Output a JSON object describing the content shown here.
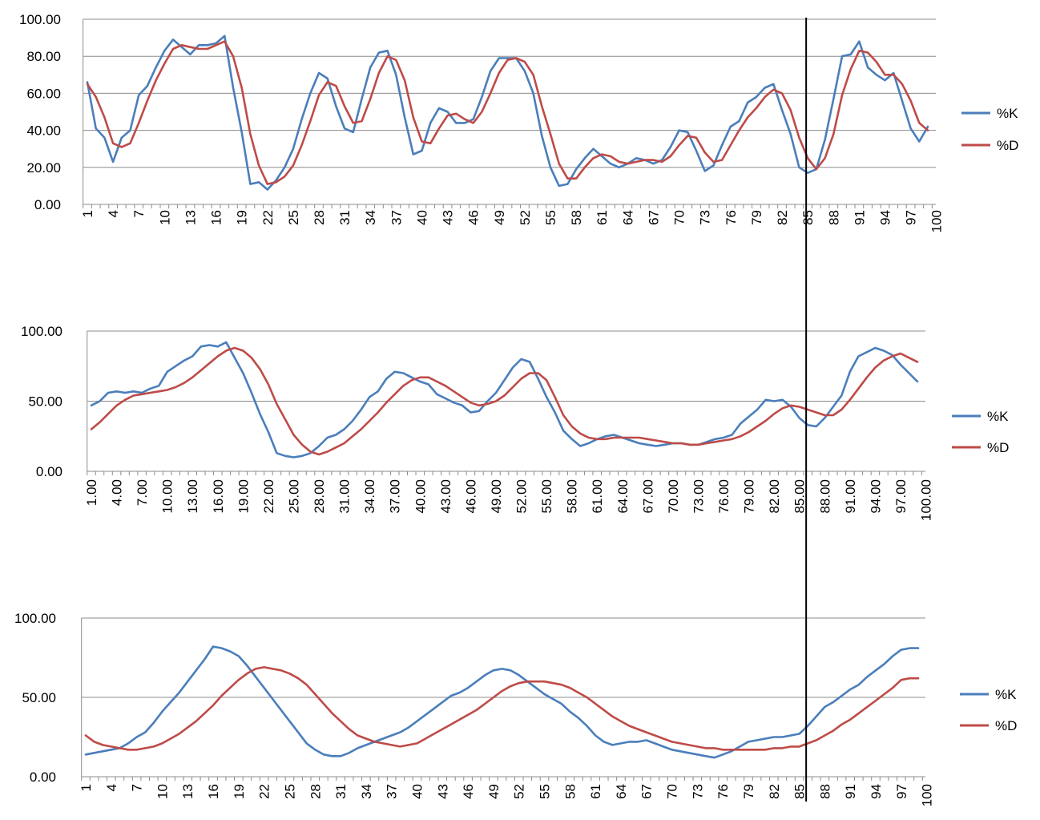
{
  "colors": {
    "k": "#4a7ebb",
    "d": "#be4b48",
    "marker": "#000000"
  },
  "marker_x": 85,
  "chart_data": [
    {
      "type": "line",
      "title": "",
      "x": [
        1,
        2,
        3,
        4,
        5,
        6,
        7,
        8,
        9,
        10,
        11,
        12,
        13,
        14,
        15,
        16,
        17,
        18,
        19,
        20,
        21,
        22,
        23,
        24,
        25,
        26,
        27,
        28,
        29,
        30,
        31,
        32,
        33,
        34,
        35,
        36,
        37,
        38,
        39,
        40,
        41,
        42,
        43,
        44,
        45,
        46,
        47,
        48,
        49,
        50,
        51,
        52,
        53,
        54,
        55,
        56,
        57,
        58,
        59,
        60,
        61,
        62,
        63,
        64,
        65,
        66,
        67,
        68,
        69,
        70,
        71,
        72,
        73,
        74,
        75,
        76,
        77,
        78,
        79,
        80,
        81,
        82,
        83,
        84,
        85,
        86,
        87,
        88,
        89,
        90,
        91,
        92,
        93,
        94,
        95,
        96,
        97,
        98,
        99
      ],
      "tick_labels": [
        "1",
        "4",
        "7",
        "10",
        "13",
        "16",
        "19",
        "22",
        "25",
        "28",
        "31",
        "34",
        "37",
        "40",
        "43",
        "46",
        "49",
        "52",
        "55",
        "58",
        "61",
        "64",
        "67",
        "70",
        "73",
        "76",
        "79",
        "82",
        "85",
        "88",
        "91",
        "94",
        "97",
        "100"
      ],
      "y_tick_labels": [
        "0.00",
        "20.00",
        "40.00",
        "60.00",
        "80.00",
        "100.00"
      ],
      "ylim": [
        0,
        100
      ],
      "series": [
        {
          "name": "%K",
          "values": [
            66,
            41,
            36,
            23,
            36,
            40,
            59,
            64,
            74,
            83,
            89,
            85,
            81,
            86,
            86,
            87,
            91,
            63,
            39,
            11,
            12,
            8,
            13,
            20,
            30,
            46,
            60,
            71,
            68,
            53,
            41,
            39,
            57,
            74,
            82,
            83,
            70,
            47,
            27,
            29,
            44,
            52,
            50,
            44,
            44,
            46,
            58,
            72,
            79,
            79,
            79,
            72,
            60,
            37,
            20,
            10,
            11,
            19,
            25,
            30,
            26,
            22,
            20,
            22,
            25,
            24,
            22,
            24,
            31,
            40,
            39,
            29,
            18,
            21,
            32,
            42,
            45,
            55,
            58,
            63,
            65,
            51,
            38,
            20,
            17,
            19,
            35,
            57,
            80,
            81,
            88,
            74,
            70,
            67,
            71,
            56,
            41,
            34,
            42
          ]
        },
        {
          "name": "%D",
          "values": [
            65,
            58,
            47,
            33,
            31,
            33,
            44,
            56,
            67,
            76,
            84,
            86,
            85,
            84,
            84,
            86,
            88,
            80,
            63,
            38,
            21,
            11,
            12,
            15,
            21,
            32,
            45,
            59,
            66,
            64,
            53,
            44,
            45,
            57,
            71,
            80,
            78,
            67,
            47,
            34,
            33,
            41,
            48,
            49,
            46,
            44,
            50,
            60,
            71,
            78,
            79,
            77,
            70,
            53,
            38,
            22,
            14,
            14,
            20,
            25,
            27,
            26,
            23,
            22,
            23,
            24,
            24,
            23,
            26,
            32,
            37,
            36,
            28,
            23,
            24,
            32,
            40,
            47,
            52,
            58,
            62,
            60,
            51,
            36,
            25,
            19,
            25,
            38,
            59,
            73,
            83,
            82,
            77,
            70,
            70,
            65,
            56,
            44,
            40
          ]
        }
      ]
    },
    {
      "type": "line",
      "title": "",
      "x": [
        1,
        2,
        3,
        4,
        5,
        6,
        7,
        8,
        9,
        10,
        11,
        12,
        13,
        14,
        15,
        16,
        17,
        18,
        19,
        20,
        21,
        22,
        23,
        24,
        25,
        26,
        27,
        28,
        29,
        30,
        31,
        32,
        33,
        34,
        35,
        36,
        37,
        38,
        39,
        40,
        41,
        42,
        43,
        44,
        45,
        46,
        47,
        48,
        49,
        50,
        51,
        52,
        53,
        54,
        55,
        56,
        57,
        58,
        59,
        60,
        61,
        62,
        63,
        64,
        65,
        66,
        67,
        68,
        69,
        70,
        71,
        72,
        73,
        74,
        75,
        76,
        77,
        78,
        79,
        80,
        81,
        82,
        83,
        84,
        85,
        86,
        87,
        88,
        89,
        90,
        91,
        92,
        93,
        94,
        95,
        96,
        97,
        98,
        99
      ],
      "tick_labels": [
        "1.00",
        "4.00",
        "7.00",
        "10.00",
        "13.00",
        "16.00",
        "19.00",
        "22.00",
        "25.00",
        "28.00",
        "31.00",
        "34.00",
        "37.00",
        "40.00",
        "43.00",
        "46.00",
        "49.00",
        "52.00",
        "55.00",
        "58.00",
        "61.00",
        "64.00",
        "67.00",
        "70.00",
        "73.00",
        "76.00",
        "79.00",
        "82.00",
        "85.00",
        "88.00",
        "91.00",
        "94.00",
        "97.00",
        "100.00"
      ],
      "y_tick_labels": [
        "0.00",
        "50.00",
        "100.00"
      ],
      "ylim": [
        0,
        100
      ],
      "series": [
        {
          "name": "%K",
          "values": [
            47,
            50,
            56,
            57,
            56,
            57,
            56,
            59,
            61,
            71,
            75,
            79,
            82,
            89,
            90,
            89,
            92,
            81,
            70,
            56,
            41,
            28,
            13,
            11,
            10,
            11,
            13,
            18,
            24,
            26,
            30,
            36,
            44,
            53,
            57,
            66,
            71,
            70,
            67,
            64,
            62,
            55,
            52,
            49,
            47,
            42,
            43,
            50,
            56,
            65,
            74,
            80,
            78,
            66,
            53,
            42,
            29,
            23,
            18,
            20,
            23,
            25,
            26,
            24,
            22,
            20,
            19,
            18,
            19,
            20,
            20,
            19,
            19,
            21,
            23,
            24,
            26,
            34,
            39,
            44,
            51,
            50,
            51,
            46,
            38,
            33,
            32,
            38,
            46,
            54,
            71,
            82,
            85,
            88,
            86,
            83,
            76,
            70,
            64
          ]
        },
        {
          "name": "%D",
          "values": [
            30,
            35,
            41,
            47,
            51,
            54,
            55,
            56,
            57,
            58,
            60,
            63,
            67,
            72,
            77,
            82,
            86,
            88,
            86,
            81,
            73,
            62,
            48,
            37,
            26,
            19,
            14,
            12,
            14,
            17,
            20,
            25,
            30,
            36,
            42,
            49,
            55,
            61,
            65,
            67,
            67,
            64,
            61,
            57,
            53,
            49,
            47,
            48,
            50,
            54,
            60,
            66,
            70,
            70,
            65,
            53,
            40,
            32,
            27,
            24,
            23,
            23,
            24,
            24,
            24,
            24,
            23,
            22,
            21,
            20,
            20,
            19,
            19,
            20,
            21,
            22,
            23,
            25,
            28,
            32,
            36,
            41,
            45,
            47,
            46,
            44,
            42,
            40,
            40,
            44,
            51,
            59,
            67,
            74,
            79,
            82,
            84,
            81,
            78
          ]
        }
      ]
    },
    {
      "type": "line",
      "title": "",
      "x": [
        1,
        2,
        3,
        4,
        5,
        6,
        7,
        8,
        9,
        10,
        11,
        12,
        13,
        14,
        15,
        16,
        17,
        18,
        19,
        20,
        21,
        22,
        23,
        24,
        25,
        26,
        27,
        28,
        29,
        30,
        31,
        32,
        33,
        34,
        35,
        36,
        37,
        38,
        39,
        40,
        41,
        42,
        43,
        44,
        45,
        46,
        47,
        48,
        49,
        50,
        51,
        52,
        53,
        54,
        55,
        56,
        57,
        58,
        59,
        60,
        61,
        62,
        63,
        64,
        65,
        66,
        67,
        68,
        69,
        70,
        71,
        72,
        73,
        74,
        75,
        76,
        77,
        78,
        79,
        80,
        81,
        82,
        83,
        84,
        85,
        86,
        87,
        88,
        89,
        90,
        91,
        92,
        93,
        94,
        95,
        96,
        97,
        98,
        99
      ],
      "tick_labels": [
        "1",
        "4",
        "7",
        "10",
        "13",
        "16",
        "19",
        "22",
        "25",
        "28",
        "31",
        "34",
        "37",
        "40",
        "43",
        "46",
        "49",
        "52",
        "55",
        "58",
        "61",
        "64",
        "67",
        "70",
        "73",
        "76",
        "79",
        "82",
        "85",
        "88",
        "91",
        "94",
        "97",
        "100"
      ],
      "y_tick_labels": [
        "0.00",
        "50.00",
        "100.00"
      ],
      "ylim": [
        0,
        100
      ],
      "series": [
        {
          "name": "%K",
          "values": [
            14,
            15,
            16,
            17,
            18,
            21,
            25,
            28,
            34,
            41,
            47,
            53,
            60,
            67,
            74,
            82,
            81,
            79,
            76,
            70,
            63,
            56,
            49,
            42,
            35,
            28,
            21,
            17,
            14,
            13,
            13,
            15,
            18,
            20,
            22,
            24,
            26,
            28,
            31,
            35,
            39,
            43,
            47,
            51,
            53,
            56,
            60,
            64,
            67,
            68,
            67,
            64,
            60,
            56,
            52,
            49,
            46,
            41,
            37,
            32,
            26,
            22,
            20,
            21,
            22,
            22,
            23,
            21,
            19,
            17,
            16,
            15,
            14,
            13,
            12,
            14,
            16,
            19,
            22,
            23,
            24,
            25,
            25,
            26,
            27,
            32,
            38,
            44,
            47,
            51,
            55,
            58,
            63,
            67,
            71,
            76,
            80,
            81,
            81
          ]
        },
        {
          "name": "%D",
          "values": [
            26,
            22,
            20,
            19,
            18,
            17,
            17,
            18,
            19,
            21,
            24,
            27,
            31,
            35,
            40,
            45,
            51,
            56,
            61,
            65,
            68,
            69,
            68,
            67,
            65,
            62,
            58,
            52,
            46,
            40,
            35,
            30,
            26,
            24,
            22,
            21,
            20,
            19,
            20,
            21,
            24,
            27,
            30,
            33,
            36,
            39,
            42,
            46,
            50,
            54,
            57,
            59,
            60,
            60,
            60,
            59,
            58,
            56,
            53,
            50,
            46,
            42,
            38,
            35,
            32,
            30,
            28,
            26,
            24,
            22,
            21,
            20,
            19,
            18,
            18,
            17,
            17,
            17,
            17,
            17,
            17,
            18,
            18,
            19,
            19,
            21,
            23,
            26,
            29,
            33,
            36,
            40,
            44,
            48,
            52,
            56,
            61,
            62,
            62
          ]
        }
      ]
    }
  ]
}
